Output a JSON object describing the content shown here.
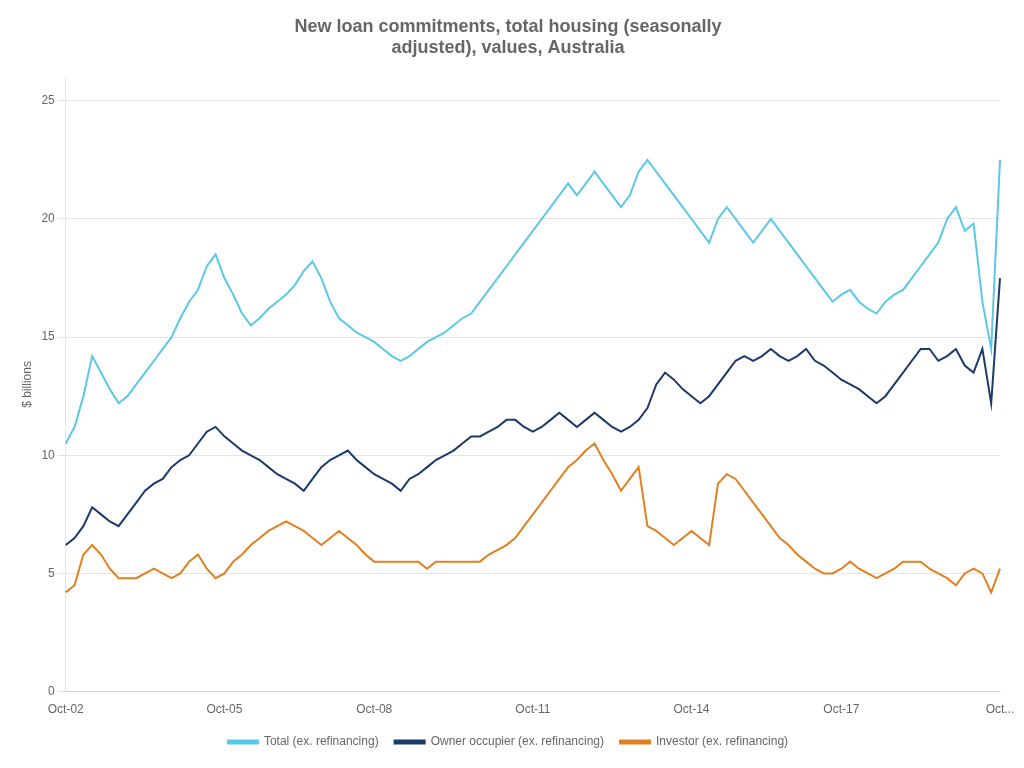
{
  "chart_data": {
    "type": "line",
    "title": "New loan commitments, total housing (seasonally\nadjusted), values, Australia",
    "y_label": "$ billions",
    "categories": [
      "Oct-02",
      null,
      null,
      null,
      null,
      null,
      null,
      null,
      null,
      null,
      null,
      null,
      null,
      null,
      null,
      null,
      null,
      null,
      "Oct-05",
      null,
      null,
      null,
      null,
      null,
      null,
      null,
      null,
      null,
      null,
      null,
      null,
      null,
      null,
      null,
      null,
      "Oct-08",
      null,
      null,
      null,
      null,
      null,
      null,
      null,
      null,
      null,
      null,
      null,
      null,
      null,
      null,
      null,
      null,
      null,
      "Oct-11",
      null,
      null,
      null,
      null,
      null,
      null,
      null,
      null,
      null,
      null,
      null,
      null,
      null,
      null,
      null,
      null,
      null,
      "Oct-14",
      null,
      null,
      null,
      null,
      null,
      null,
      null,
      null,
      null,
      null,
      null,
      null,
      null,
      null,
      null,
      null,
      "Oct-17",
      null,
      null,
      null,
      null,
      null,
      null,
      null,
      null,
      null,
      null,
      null,
      null,
      null,
      null,
      null,
      null,
      null,
      "Oct..."
    ],
    "series": [
      {
        "name": "Total (ex. refinancing)",
        "color": "#5BC8E8",
        "values": [
          10.5,
          11.2,
          12.5,
          14.2,
          13.5,
          12.8,
          12.2,
          12.5,
          13.0,
          13.5,
          14.0,
          14.5,
          15.0,
          15.8,
          16.5,
          17.0,
          18.0,
          18.5,
          17.5,
          16.8,
          16.0,
          15.5,
          15.8,
          16.2,
          16.5,
          16.8,
          17.2,
          17.8,
          18.2,
          17.5,
          16.5,
          15.8,
          15.5,
          15.2,
          15.0,
          14.8,
          14.5,
          14.2,
          14.0,
          14.2,
          14.5,
          14.8,
          15.0,
          15.2,
          15.5,
          15.8,
          16.0,
          16.5,
          17.0,
          17.5,
          18.0,
          18.5,
          19.0,
          19.5,
          20.0,
          20.5,
          21.0,
          21.5,
          21.0,
          21.5,
          22.0,
          21.5,
          21.0,
          20.5,
          21.0,
          22.0,
          22.5,
          22.0,
          21.5,
          21.0,
          20.5,
          20.0,
          19.5,
          19.0,
          20.0,
          20.5,
          20.0,
          19.5,
          19.0,
          19.5,
          20.0,
          19.5,
          19.0,
          18.5,
          18.0,
          17.5,
          17.0,
          16.5,
          16.8,
          17.0,
          16.5,
          16.2,
          16.0,
          16.5,
          16.8,
          17.0,
          17.5,
          18.0,
          18.5,
          19.0,
          20.0,
          20.5,
          19.5,
          19.8,
          16.5,
          14.5,
          22.5
        ]
      },
      {
        "name": "Owner occupier (ex. refinancing)",
        "color": "#1B3A6B",
        "values": [
          6.2,
          6.5,
          7.0,
          7.8,
          7.5,
          7.2,
          7.0,
          7.5,
          8.0,
          8.5,
          8.8,
          9.0,
          9.5,
          9.8,
          10.0,
          10.5,
          11.0,
          11.2,
          10.8,
          10.5,
          10.2,
          10.0,
          9.8,
          9.5,
          9.2,
          9.0,
          8.8,
          8.5,
          9.0,
          9.5,
          9.8,
          10.0,
          10.2,
          9.8,
          9.5,
          9.2,
          9.0,
          8.8,
          8.5,
          9.0,
          9.2,
          9.5,
          9.8,
          10.0,
          10.2,
          10.5,
          10.8,
          10.8,
          11.0,
          11.2,
          11.5,
          11.5,
          11.2,
          11.0,
          11.2,
          11.5,
          11.8,
          11.5,
          11.2,
          11.5,
          11.8,
          11.5,
          11.2,
          11.0,
          11.2,
          11.5,
          12.0,
          13.0,
          13.5,
          13.2,
          12.8,
          12.5,
          12.2,
          12.5,
          13.0,
          13.5,
          14.0,
          14.2,
          14.0,
          14.2,
          14.5,
          14.2,
          14.0,
          14.2,
          14.5,
          14.0,
          13.8,
          13.5,
          13.2,
          13.0,
          12.8,
          12.5,
          12.2,
          12.5,
          13.0,
          13.5,
          14.0,
          14.5,
          14.5,
          14.0,
          14.2,
          14.5,
          13.8,
          13.5,
          14.5,
          12.2,
          17.5
        ]
      },
      {
        "name": "Investor (ex. refinancing)",
        "color": "#E08020",
        "values": [
          4.2,
          4.5,
          5.8,
          6.2,
          5.8,
          5.2,
          4.8,
          4.8,
          4.8,
          5.0,
          5.2,
          5.0,
          4.8,
          5.0,
          5.5,
          5.8,
          5.2,
          4.8,
          5.0,
          5.5,
          5.8,
          6.2,
          6.5,
          6.8,
          7.0,
          7.2,
          7.0,
          6.8,
          6.5,
          6.2,
          6.5,
          6.8,
          6.5,
          6.2,
          5.8,
          5.5,
          5.5,
          5.5,
          5.5,
          5.5,
          5.5,
          5.2,
          5.5,
          5.5,
          5.5,
          5.5,
          5.5,
          5.5,
          5.8,
          6.0,
          6.2,
          6.5,
          7.0,
          7.5,
          8.0,
          8.5,
          9.0,
          9.5,
          9.8,
          10.2,
          10.5,
          9.8,
          9.2,
          8.5,
          9.0,
          9.5,
          7.0,
          6.8,
          6.5,
          6.2,
          6.5,
          6.8,
          6.5,
          6.2,
          8.8,
          9.2,
          9.0,
          8.5,
          8.0,
          7.5,
          7.0,
          6.5,
          6.2,
          5.8,
          5.5,
          5.2,
          5.0,
          5.0,
          5.2,
          5.5,
          5.2,
          5.0,
          4.8,
          5.0,
          5.2,
          5.5,
          5.5,
          5.5,
          5.2,
          5.0,
          4.8,
          4.5,
          5.0,
          5.2,
          5.0,
          4.2,
          5.2
        ]
      }
    ],
    "ylim": [
      0,
      26
    ],
    "yticks": [
      0,
      5,
      10,
      15,
      20,
      25
    ],
    "grid": true,
    "legend": "bottom"
  }
}
